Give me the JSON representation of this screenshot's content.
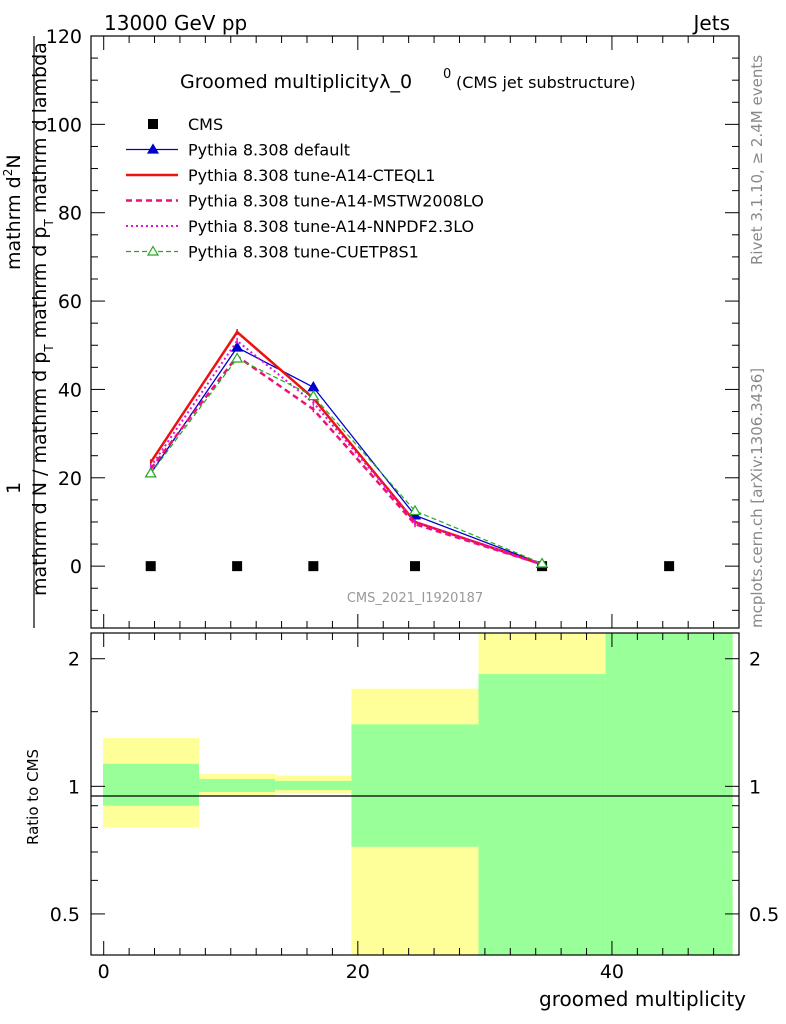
{
  "header": {
    "left_label": "13000 GeV pp",
    "right_label": "Jets"
  },
  "side": {
    "rivet_label": "Rivet 3.1.10, ≥ 2.4M events",
    "mcplots_label": "mcplots.cern.ch [arXiv:1306.3436]"
  },
  "chart_data": [
    {
      "type": "line",
      "title": "Groomed multiplicityλ_0",
      "title_sup": "0",
      "subtitle": "(CMS jet substructure)",
      "watermark": "CMS_2021_I1920187",
      "ylabel_numerator": "1",
      "ylabel_sub1": "T",
      "ylabel_sub2": "T",
      "ylabel_top_prefix": "mathrm d",
      "ylabel_top_sup": "2",
      "ylabel_top_suffix": "N",
      "ylabel_top_line2": "mathrm d p",
      "ylabel_top_line2b": "mathrm d p",
      "ylabel_top_line3": "mathrm d lambda",
      "ylabel_bottom": "mathrm d N / mathrm d p",
      "ylim": [
        -14,
        120
      ],
      "xlim": [
        -1,
        50
      ],
      "yticks": [
        0,
        20,
        40,
        60,
        80,
        100,
        120
      ],
      "x": [
        3.7,
        10.5,
        16.5,
        24.5,
        34.5
      ],
      "series": [
        {
          "name": "CMS",
          "style": "data",
          "color": "#000000",
          "x": [
            3.7,
            10.5,
            16.5,
            24.5,
            34.5,
            44.5
          ],
          "values": [
            0,
            0,
            0,
            0,
            0,
            0
          ]
        },
        {
          "name": "Pythia 8.308 default",
          "style": "solid-triangle",
          "color": "#0000cc",
          "values": [
            21.0,
            49.5,
            40.5,
            11.5,
            0.5
          ]
        },
        {
          "name": "Pythia 8.308 tune-A14-CTEQL1",
          "style": "solid",
          "color": "#ee1111",
          "values": [
            23.5,
            53.0,
            38.0,
            10.0,
            0.4
          ]
        },
        {
          "name": "Pythia 8.308 tune-A14-MSTW2008LO",
          "style": "dashed",
          "color": "#ee1177",
          "values": [
            22.0,
            47.5,
            35.5,
            9.5,
            0.4
          ]
        },
        {
          "name": "Pythia 8.308 tune-A14-NNPDF2.3LO",
          "style": "dotted",
          "color": "#dd11dd",
          "values": [
            22.5,
            51.0,
            37.0,
            10.0,
            0.4
          ]
        },
        {
          "name": "Pythia 8.308 tune-CUETP8S1",
          "style": "dashed-triangle",
          "color": "#22aa22",
          "values": [
            21.0,
            47.0,
            38.5,
            12.5,
            0.6
          ]
        }
      ]
    },
    {
      "type": "area",
      "ylabel": "Ratio to CMS",
      "xlabel": "groomed multiplicity",
      "scale": "log",
      "ylim": [
        0.4,
        2.3
      ],
      "yticks": [
        0.5,
        1,
        2
      ],
      "xticks": [
        0,
        20,
        40
      ],
      "bins": [
        {
          "x0": -0.5,
          "x1": 7.5,
          "yellow": [
            0.8,
            1.3
          ],
          "green": [
            0.9,
            1.13
          ]
        },
        {
          "x0": 7.5,
          "x1": 13.5,
          "yellow": [
            0.95,
            1.07
          ],
          "green": [
            0.97,
            1.04
          ]
        },
        {
          "x0": 13.5,
          "x1": 19.5,
          "yellow": [
            0.96,
            1.06
          ],
          "green": [
            0.98,
            1.03
          ]
        },
        {
          "x0": 19.5,
          "x1": 29.5,
          "yellow": [
            0.4,
            1.7
          ],
          "green": [
            0.72,
            1.4
          ]
        },
        {
          "x0": 29.5,
          "x1": 39.5,
          "yellow": [
            0.4,
            2.3
          ],
          "green": [
            0.4,
            1.84
          ]
        },
        {
          "x0": 39.5,
          "x1": 49.5,
          "yellow": [
            0.4,
            2.3
          ],
          "green": [
            0.4,
            2.3
          ]
        }
      ],
      "colors": {
        "yellow": "#ffff99",
        "green": "#99ff99"
      }
    }
  ]
}
